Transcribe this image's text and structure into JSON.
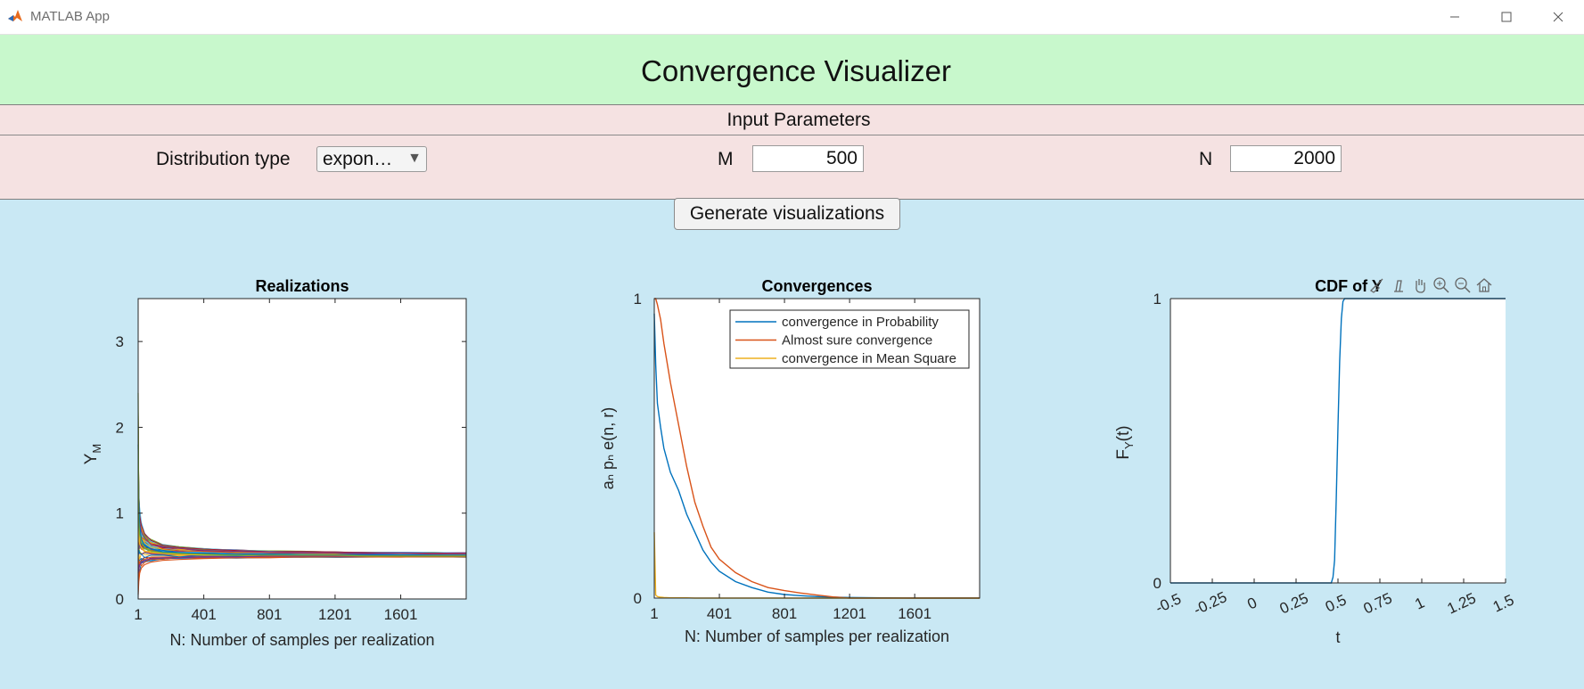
{
  "window": {
    "title": "MATLAB App",
    "icon": "matlab-icon"
  },
  "header": {
    "title": "Convergence Visualizer"
  },
  "params": {
    "title": "Input Parameters",
    "distribution_label": "Distribution type",
    "distribution_value": "expon…",
    "m_label": "M",
    "m_value": "500",
    "n_label": "N",
    "n_value": "2000"
  },
  "generate_label": "Generate visualizations",
  "colors": {
    "header_bg": "#c8f8cc",
    "params_bg": "#f5e2e2",
    "panel_bg": "#c9e8f4",
    "series_blue": "#0072BD",
    "series_orange": "#D95319",
    "series_yellow": "#EDB120"
  },
  "toolbar_icons": [
    "brush-icon",
    "data-tips-icon",
    "pan-icon",
    "zoom-in-icon",
    "zoom-out-icon",
    "home-icon"
  ],
  "chart_data": [
    {
      "type": "line",
      "title": "Realizations",
      "xlabel": "N: Number of samples per realization",
      "ylabel": "Y",
      "ylabel_sub": "M",
      "xticks": [
        1,
        401,
        801,
        1201,
        1601
      ],
      "yticks": [
        0,
        1,
        2,
        3
      ],
      "xlim": [
        1,
        2000
      ],
      "ylim": [
        0,
        3.5
      ],
      "series_count": 500,
      "x": [
        1,
        5,
        10,
        20,
        40,
        80,
        150,
        250,
        400,
        600,
        800,
        1000,
        1200,
        1400,
        1600,
        1800,
        2000
      ],
      "series": [
        {
          "values": [
            1.8,
            1.2,
            0.85,
            0.7,
            0.62,
            0.58,
            0.55,
            0.54,
            0.53,
            0.52,
            0.52,
            0.51,
            0.51,
            0.51,
            0.51,
            0.51,
            0.51
          ]
        },
        {
          "values": [
            0.05,
            0.2,
            0.3,
            0.36,
            0.4,
            0.43,
            0.45,
            0.46,
            0.47,
            0.48,
            0.48,
            0.49,
            0.49,
            0.49,
            0.49,
            0.49,
            0.49
          ]
        },
        {
          "values": [
            1.0,
            0.8,
            0.65,
            0.6,
            0.56,
            0.54,
            0.53,
            0.52,
            0.51,
            0.51,
            0.5,
            0.5,
            0.5,
            0.5,
            0.5,
            0.5,
            0.5
          ]
        },
        {
          "values": [
            0.3,
            0.35,
            0.4,
            0.42,
            0.45,
            0.47,
            0.48,
            0.48,
            0.49,
            0.49,
            0.5,
            0.5,
            0.5,
            0.5,
            0.5,
            0.5,
            0.5
          ]
        },
        {
          "values": [
            2.4,
            0.9,
            0.75,
            0.66,
            0.6,
            0.56,
            0.54,
            0.53,
            0.52,
            0.51,
            0.51,
            0.51,
            0.51,
            0.5,
            0.5,
            0.5,
            0.5
          ]
        }
      ]
    },
    {
      "type": "line",
      "title": "Convergences",
      "xlabel": "N: Number of samples per realization",
      "ylabel": "aₙ   pₙ   e(n, r)",
      "xticks": [
        1,
        401,
        801,
        1201,
        1601
      ],
      "yticks": [
        0,
        1
      ],
      "xlim": [
        1,
        2000
      ],
      "ylim": [
        0,
        1
      ],
      "legend_position": "top-right",
      "x": [
        1,
        10,
        20,
        40,
        60,
        100,
        150,
        200,
        250,
        300,
        350,
        400,
        500,
        600,
        700,
        800,
        900,
        1000,
        1100,
        1200,
        1400,
        1600,
        2000
      ],
      "series": [
        {
          "name": "convergence in Probability",
          "values": [
            0.95,
            0.78,
            0.65,
            0.57,
            0.5,
            0.42,
            0.36,
            0.28,
            0.22,
            0.16,
            0.12,
            0.09,
            0.055,
            0.035,
            0.02,
            0.012,
            0.008,
            0.005,
            0.003,
            0.002,
            0.001,
            0.0,
            0.0
          ]
        },
        {
          "name": "Almost sure convergence",
          "values": [
            1.0,
            1.0,
            0.98,
            0.93,
            0.85,
            0.72,
            0.58,
            0.44,
            0.32,
            0.24,
            0.17,
            0.13,
            0.085,
            0.055,
            0.035,
            0.025,
            0.017,
            0.01,
            0.004,
            0.0,
            0.0,
            0.0,
            0.0
          ]
        },
        {
          "name": "convergence in Mean Square",
          "values": [
            0.22,
            0.01,
            0.005,
            0.003,
            0.002,
            0.001,
            0.001,
            0.001,
            0.0,
            0.0,
            0.0,
            0.0,
            0.0,
            0.0,
            0.0,
            0.0,
            0.0,
            0.0,
            0.0,
            0.0,
            0.0,
            0.0,
            0.0
          ]
        }
      ]
    },
    {
      "type": "line",
      "title": "CDF of Y",
      "xlabel": "t",
      "ylabel": "F",
      "ylabel_sub": "Y",
      "ylabel_suffix": "(t)",
      "xticks": [
        -0.5,
        -0.25,
        0,
        0.25,
        0.5,
        0.75,
        1,
        1.25,
        1.5
      ],
      "yticks": [
        0,
        1
      ],
      "xlim": [
        -0.5,
        1.5
      ],
      "ylim": [
        0,
        1
      ],
      "x": [
        -0.5,
        0.4,
        0.46,
        0.47,
        0.48,
        0.49,
        0.5,
        0.51,
        0.52,
        0.53,
        0.54,
        1.5
      ],
      "series": [
        {
          "values": [
            0.0,
            0.0,
            0.0,
            0.02,
            0.08,
            0.3,
            0.55,
            0.78,
            0.93,
            0.99,
            1.0,
            1.0
          ]
        }
      ]
    }
  ]
}
